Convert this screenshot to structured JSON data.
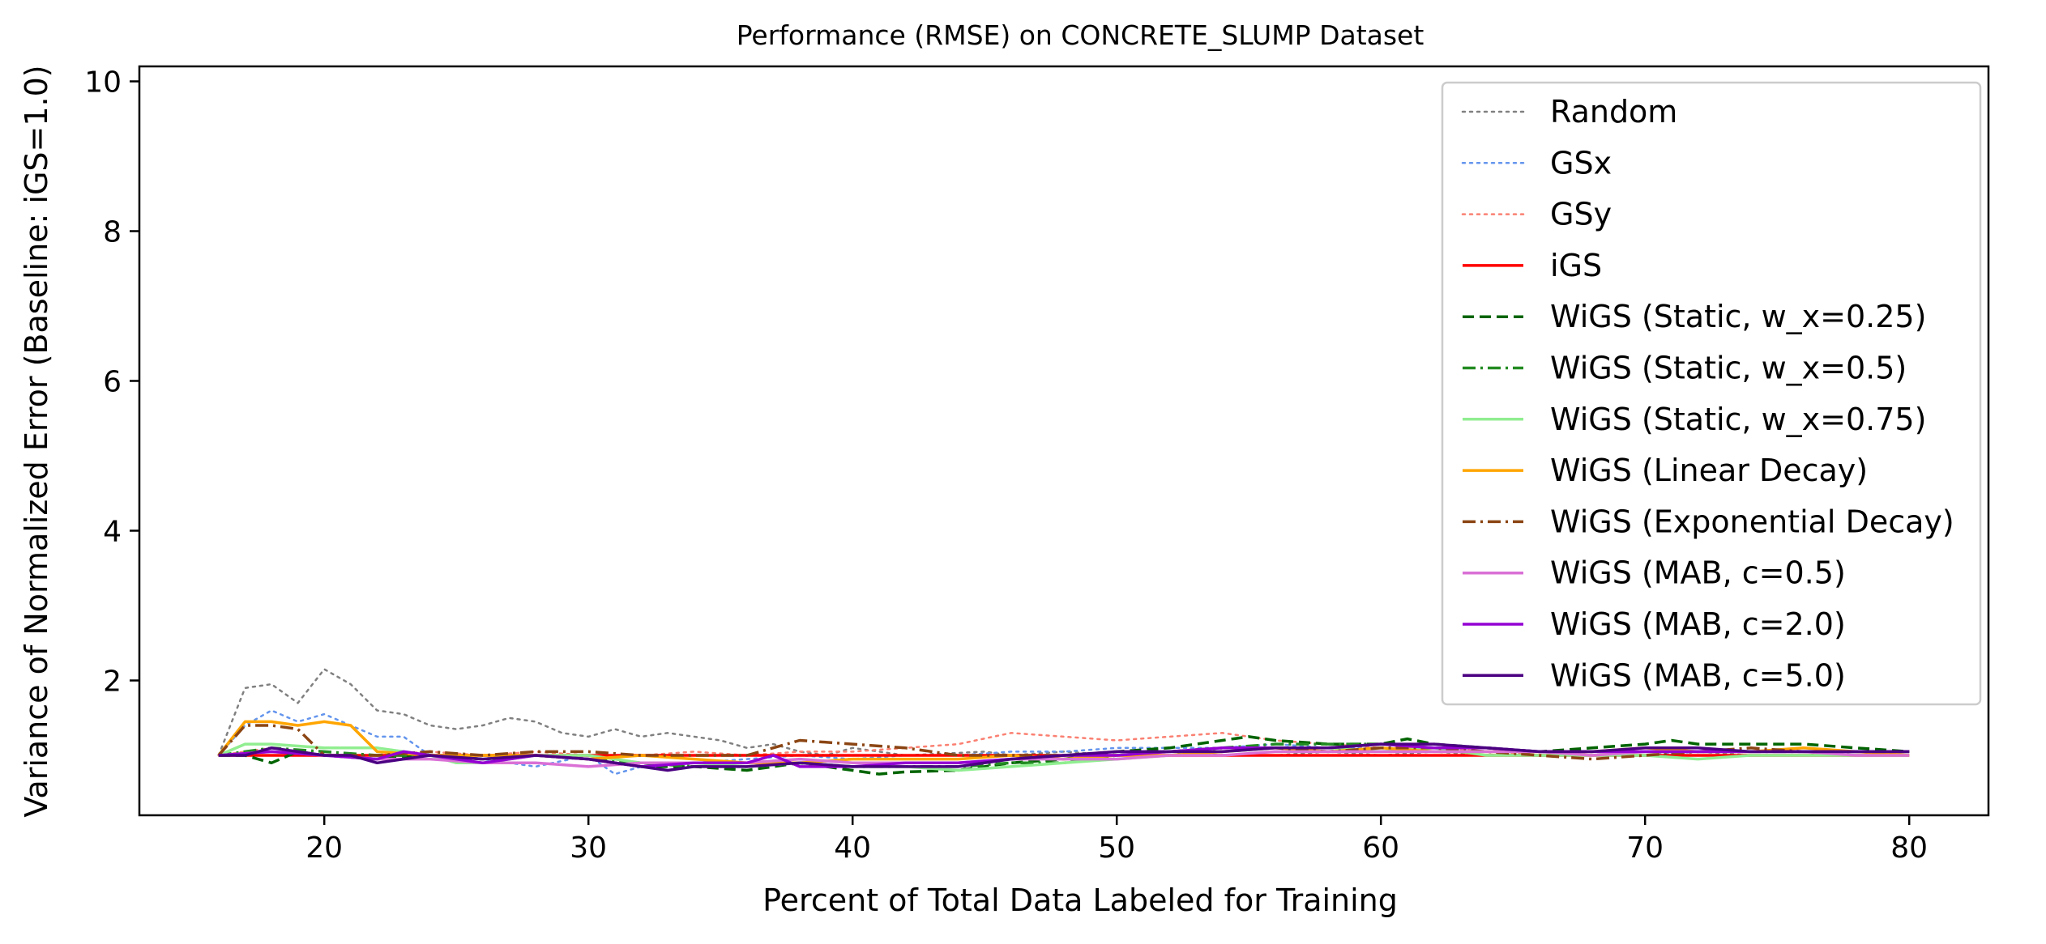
{
  "chart_data": {
    "type": "line",
    "title": "Performance (RMSE) on CONCRETE_SLUMP Dataset",
    "xlabel": "Percent of Total Data Labeled for Training",
    "ylabel": "Variance of Normalized Error (Baseline: iGS=1.0)",
    "xlim": [
      13,
      83
    ],
    "ylim": [
      0.2,
      10.2
    ],
    "xticks": [
      20,
      30,
      40,
      50,
      60,
      70,
      80
    ],
    "yticks": [
      2,
      4,
      6,
      8,
      10
    ],
    "grid": false,
    "legend_position": "upper right",
    "series": [
      {
        "name": "Random",
        "color": "#808080",
        "dash": "dotted",
        "width": 2.5,
        "x": [
          16,
          17,
          18,
          19,
          20,
          21,
          22,
          23,
          24,
          25,
          26,
          27,
          28,
          29,
          30,
          31,
          32,
          33,
          34,
          35,
          36,
          37,
          38,
          39,
          40,
          42,
          45,
          46,
          48,
          50,
          52,
          54,
          56,
          58,
          60,
          62,
          64,
          66,
          68,
          70,
          72,
          74,
          76,
          78,
          80
        ],
        "y": [
          1.0,
          1.9,
          1.95,
          1.7,
          2.15,
          1.95,
          1.6,
          1.55,
          1.4,
          1.35,
          1.4,
          1.5,
          1.45,
          1.3,
          1.25,
          1.35,
          1.25,
          1.3,
          1.25,
          1.2,
          1.1,
          1.15,
          1.05,
          1.0,
          1.1,
          1.0,
          1.05,
          1.0,
          1.05,
          1.0,
          1.05,
          1.0,
          1.0,
          1.05,
          1.0,
          1.05,
          1.0,
          1.05,
          1.0,
          1.0,
          1.05,
          1.0,
          1.0,
          1.05,
          1.05
        ]
      },
      {
        "name": "GSx",
        "color": "#6495ed",
        "dash": "dotted",
        "width": 2.5,
        "x": [
          16,
          17,
          18,
          19,
          20,
          21,
          22,
          23,
          24,
          26,
          28,
          30,
          31,
          32,
          34,
          36,
          38,
          40,
          42,
          44,
          46,
          48,
          50,
          52,
          54,
          56,
          58,
          60,
          62,
          64,
          66,
          68,
          70,
          72,
          74,
          76,
          78,
          80
        ],
        "y": [
          1.0,
          1.4,
          1.6,
          1.45,
          1.55,
          1.4,
          1.25,
          1.25,
          1.0,
          0.95,
          0.85,
          1.0,
          0.75,
          0.85,
          0.9,
          0.95,
          1.0,
          0.95,
          1.0,
          1.0,
          1.05,
          1.05,
          1.1,
          1.1,
          1.1,
          1.15,
          1.1,
          1.1,
          1.05,
          1.05,
          1.0,
          1.0,
          1.0,
          1.05,
          1.05,
          1.05,
          1.05,
          1.05
        ]
      },
      {
        "name": "GSy",
        "color": "#fa8072",
        "dash": "dotted",
        "width": 2.5,
        "x": [
          16,
          18,
          20,
          22,
          24,
          26,
          28,
          30,
          32,
          34,
          36,
          38,
          40,
          42,
          44,
          46,
          48,
          50,
          52,
          54,
          56,
          58,
          60,
          62,
          64,
          66,
          68,
          70,
          72,
          74,
          76,
          78,
          80
        ],
        "y": [
          1.0,
          1.1,
          1.0,
          1.0,
          1.05,
          1.0,
          1.05,
          1.0,
          1.0,
          1.05,
          1.0,
          1.05,
          1.05,
          1.1,
          1.15,
          1.3,
          1.25,
          1.2,
          1.25,
          1.3,
          1.2,
          1.15,
          1.1,
          1.1,
          1.05,
          1.0,
          1.05,
          1.05,
          1.05,
          1.05,
          1.1,
          1.05,
          1.05
        ]
      },
      {
        "name": "iGS",
        "color": "#ff0000",
        "dash": "solid",
        "width": 3.5,
        "x": [
          16,
          80
        ],
        "y": [
          1.0,
          1.0
        ]
      },
      {
        "name": "WiGS (Static, w_x=0.25)",
        "color": "#006400",
        "dash": "dashed",
        "width": 3.5,
        "x": [
          16,
          17,
          18,
          19,
          20,
          22,
          24,
          26,
          28,
          30,
          32,
          34,
          36,
          38,
          40,
          41,
          42,
          44,
          46,
          48,
          50,
          52,
          54,
          55,
          56,
          58,
          60,
          61,
          62,
          64,
          66,
          68,
          70,
          71,
          72,
          74,
          76,
          78,
          80
        ],
        "y": [
          1.0,
          1.0,
          0.9,
          1.05,
          1.0,
          0.95,
          1.0,
          0.95,
          1.0,
          0.95,
          0.85,
          0.85,
          0.8,
          0.9,
          0.8,
          0.75,
          0.78,
          0.8,
          0.9,
          0.95,
          1.05,
          1.1,
          1.2,
          1.25,
          1.2,
          1.15,
          1.15,
          1.22,
          1.15,
          1.1,
          1.05,
          1.1,
          1.15,
          1.2,
          1.15,
          1.15,
          1.15,
          1.1,
          1.05
        ]
      },
      {
        "name": "WiGS (Static, w_x=0.5)",
        "color": "#228b22",
        "dash": "dashdot",
        "width": 3.5,
        "x": [
          16,
          18,
          20,
          22,
          24,
          26,
          28,
          30,
          32,
          34,
          36,
          38,
          40,
          42,
          44,
          46,
          48,
          50,
          52,
          54,
          56,
          58,
          60,
          62,
          64,
          66,
          68,
          70,
          72,
          74,
          76,
          78,
          80
        ],
        "y": [
          1.0,
          1.1,
          1.05,
          1.0,
          1.0,
          0.95,
          1.0,
          0.95,
          0.9,
          0.85,
          0.85,
          0.9,
          0.85,
          0.85,
          0.85,
          0.9,
          0.9,
          1.0,
          1.05,
          1.1,
          1.15,
          1.15,
          1.15,
          1.1,
          1.1,
          1.05,
          1.05,
          1.05,
          1.05,
          1.05,
          1.05,
          1.05,
          1.05
        ]
      },
      {
        "name": "WiGS (Static, w_x=0.75)",
        "color": "#90ee90",
        "dash": "solid",
        "width": 3.5,
        "x": [
          16,
          17,
          18,
          20,
          22,
          24,
          25,
          26,
          28,
          30,
          32,
          34,
          36,
          38,
          40,
          42,
          44,
          46,
          48,
          50,
          52,
          54,
          56,
          58,
          60,
          62,
          64,
          66,
          68,
          70,
          72,
          74,
          76,
          78,
          80
        ],
        "y": [
          1.0,
          1.15,
          1.15,
          1.1,
          1.1,
          1.0,
          0.9,
          0.9,
          1.0,
          1.0,
          0.9,
          0.9,
          0.85,
          0.9,
          0.85,
          0.85,
          0.8,
          0.85,
          0.9,
          0.95,
          1.0,
          1.05,
          1.1,
          1.1,
          1.05,
          1.1,
          1.0,
          1.0,
          1.0,
          1.0,
          0.95,
          1.0,
          1.0,
          1.0,
          1.0
        ]
      },
      {
        "name": "WiGS (Linear Decay)",
        "color": "#ffa500",
        "dash": "solid",
        "width": 3.5,
        "x": [
          16,
          17,
          18,
          19,
          20,
          21,
          22,
          24,
          26,
          28,
          30,
          32,
          34,
          36,
          38,
          40,
          42,
          44,
          46,
          48,
          50,
          52,
          54,
          56,
          58,
          60,
          62,
          64,
          66,
          68,
          70,
          72,
          74,
          76,
          78,
          80
        ],
        "y": [
          1.0,
          1.45,
          1.45,
          1.4,
          1.45,
          1.4,
          1.05,
          1.0,
          1.0,
          1.0,
          0.95,
          1.0,
          0.95,
          0.9,
          0.9,
          0.95,
          0.95,
          0.95,
          1.0,
          0.95,
          1.0,
          1.0,
          1.05,
          1.1,
          1.05,
          1.1,
          1.05,
          1.05,
          1.05,
          1.05,
          1.1,
          1.05,
          1.05,
          1.1,
          1.05,
          1.0
        ]
      },
      {
        "name": "WiGS (Exponential Decay)",
        "color": "#8b4513",
        "dash": "dashdot",
        "width": 3.5,
        "x": [
          16,
          17,
          18,
          19,
          20,
          21,
          22,
          24,
          26,
          28,
          30,
          32,
          34,
          36,
          38,
          40,
          42,
          44,
          46,
          48,
          50,
          52,
          54,
          56,
          58,
          60,
          62,
          64,
          66,
          68,
          70,
          72,
          74,
          76,
          78,
          80
        ],
        "y": [
          1.0,
          1.4,
          1.4,
          1.35,
          1.0,
          1.0,
          1.0,
          1.05,
          1.0,
          1.05,
          1.05,
          1.0,
          1.0,
          1.0,
          1.2,
          1.15,
          1.1,
          1.0,
          1.0,
          1.0,
          1.05,
          1.05,
          1.1,
          1.1,
          1.05,
          1.1,
          1.1,
          1.05,
          1.0,
          0.95,
          1.0,
          1.05,
          1.1,
          1.05,
          1.05,
          1.05
        ]
      },
      {
        "name": "WiGS (MAB, c=0.5)",
        "color": "#da70d6",
        "dash": "solid",
        "width": 3.5,
        "x": [
          16,
          18,
          20,
          22,
          24,
          26,
          28,
          30,
          32,
          34,
          36,
          38,
          40,
          42,
          44,
          46,
          48,
          50,
          52,
          54,
          56,
          58,
          60,
          62,
          64,
          66,
          68,
          70,
          72,
          74,
          76,
          78,
          80
        ],
        "y": [
          1.0,
          1.05,
          1.0,
          0.95,
          0.95,
          0.9,
          0.9,
          0.85,
          0.9,
          0.9,
          0.9,
          0.95,
          0.9,
          0.9,
          0.9,
          0.95,
          0.95,
          0.95,
          1.0,
          1.0,
          1.05,
          1.05,
          1.05,
          1.05,
          1.05,
          1.05,
          1.0,
          1.05,
          1.05,
          1.05,
          1.05,
          1.0,
          1.0
        ]
      },
      {
        "name": "WiGS (MAB, c=2.0)",
        "color": "#9400d3",
        "dash": "solid",
        "width": 3.5,
        "x": [
          16,
          18,
          20,
          22,
          23,
          24,
          26,
          28,
          30,
          32,
          34,
          36,
          37,
          38,
          40,
          42,
          44,
          46,
          48,
          50,
          52,
          54,
          56,
          58,
          60,
          62,
          64,
          66,
          68,
          70,
          72,
          74,
          76,
          78,
          80
        ],
        "y": [
          1.0,
          1.05,
          1.0,
          0.95,
          1.05,
          1.0,
          0.9,
          1.0,
          0.95,
          0.85,
          0.9,
          0.9,
          1.0,
          0.85,
          0.85,
          0.9,
          0.9,
          0.95,
          1.0,
          1.0,
          1.05,
          1.1,
          1.1,
          1.1,
          1.15,
          1.1,
          1.1,
          1.05,
          1.05,
          1.05,
          1.05,
          1.05,
          1.05,
          1.05,
          1.05
        ]
      },
      {
        "name": "WiGS (MAB, c=5.0)",
        "color": "#4b0082",
        "dash": "solid",
        "width": 3.5,
        "x": [
          16,
          17,
          18,
          19,
          20,
          21,
          22,
          23,
          24,
          26,
          28,
          30,
          32,
          33,
          34,
          36,
          38,
          40,
          42,
          44,
          46,
          48,
          50,
          52,
          54,
          56,
          58,
          60,
          62,
          64,
          66,
          68,
          70,
          72,
          74,
          76,
          78,
          80
        ],
        "y": [
          1.0,
          1.0,
          1.1,
          1.05,
          1.0,
          1.0,
          0.9,
          0.95,
          1.0,
          0.95,
          1.0,
          0.95,
          0.85,
          0.8,
          0.85,
          0.85,
          0.9,
          0.85,
          0.85,
          0.85,
          0.95,
          1.0,
          1.05,
          1.05,
          1.05,
          1.1,
          1.1,
          1.15,
          1.15,
          1.1,
          1.05,
          1.05,
          1.1,
          1.1,
          1.05,
          1.05,
          1.05,
          1.05
        ]
      }
    ]
  }
}
